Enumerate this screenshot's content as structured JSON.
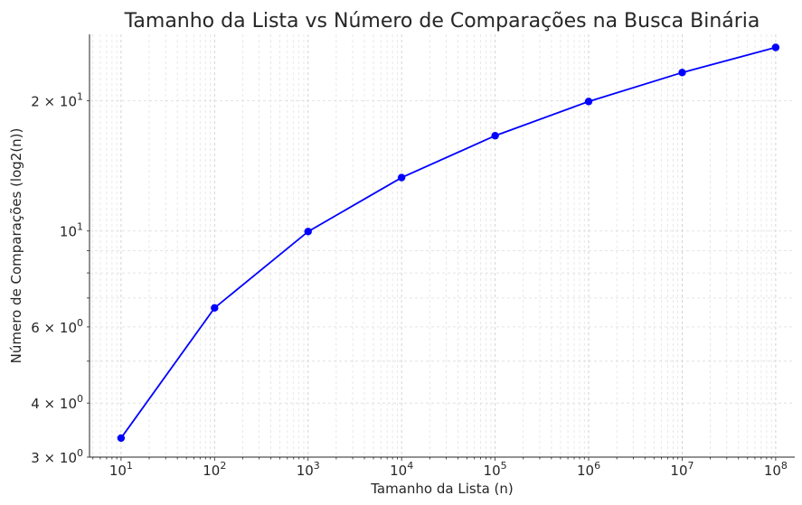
{
  "chart_data": {
    "type": "line",
    "title": "Tamanho da Lista vs Número de Comparações na Busca Binária",
    "xlabel": "Tamanho da Lista (n)",
    "ylabel": "Número de Comparações (log2(n))",
    "x_scale": "log",
    "y_scale": "log",
    "xlim": [
      4.6,
      160000000
    ],
    "ylim": [
      3.0,
      28.5
    ],
    "grid": true,
    "x": [
      10,
      100,
      1000,
      10000,
      100000,
      1000000,
      10000000,
      100000000
    ],
    "series": [
      {
        "values": [
          3.32,
          6.64,
          9.97,
          13.29,
          16.61,
          19.93,
          23.25,
          26.58
        ],
        "color": "#0000ff",
        "marker": "circle"
      }
    ],
    "x_ticks": [
      {
        "value": 10,
        "base": "10",
        "exp": "1"
      },
      {
        "value": 100,
        "base": "10",
        "exp": "2"
      },
      {
        "value": 1000,
        "base": "10",
        "exp": "3"
      },
      {
        "value": 10000,
        "base": "10",
        "exp": "4"
      },
      {
        "value": 100000,
        "base": "10",
        "exp": "5"
      },
      {
        "value": 1000000,
        "base": "10",
        "exp": "6"
      },
      {
        "value": 10000000,
        "base": "10",
        "exp": "7"
      },
      {
        "value": 100000000,
        "base": "10",
        "exp": "8"
      }
    ],
    "y_ticks": [
      {
        "value": 3,
        "base": "3 × 10",
        "exp": "0"
      },
      {
        "value": 4,
        "base": "4 × 10",
        "exp": "0"
      },
      {
        "value": 6,
        "base": "6 × 10",
        "exp": "0"
      },
      {
        "value": 10,
        "base": "10",
        "exp": "1"
      },
      {
        "value": 20,
        "base": "2 × 10",
        "exp": "1"
      }
    ]
  }
}
